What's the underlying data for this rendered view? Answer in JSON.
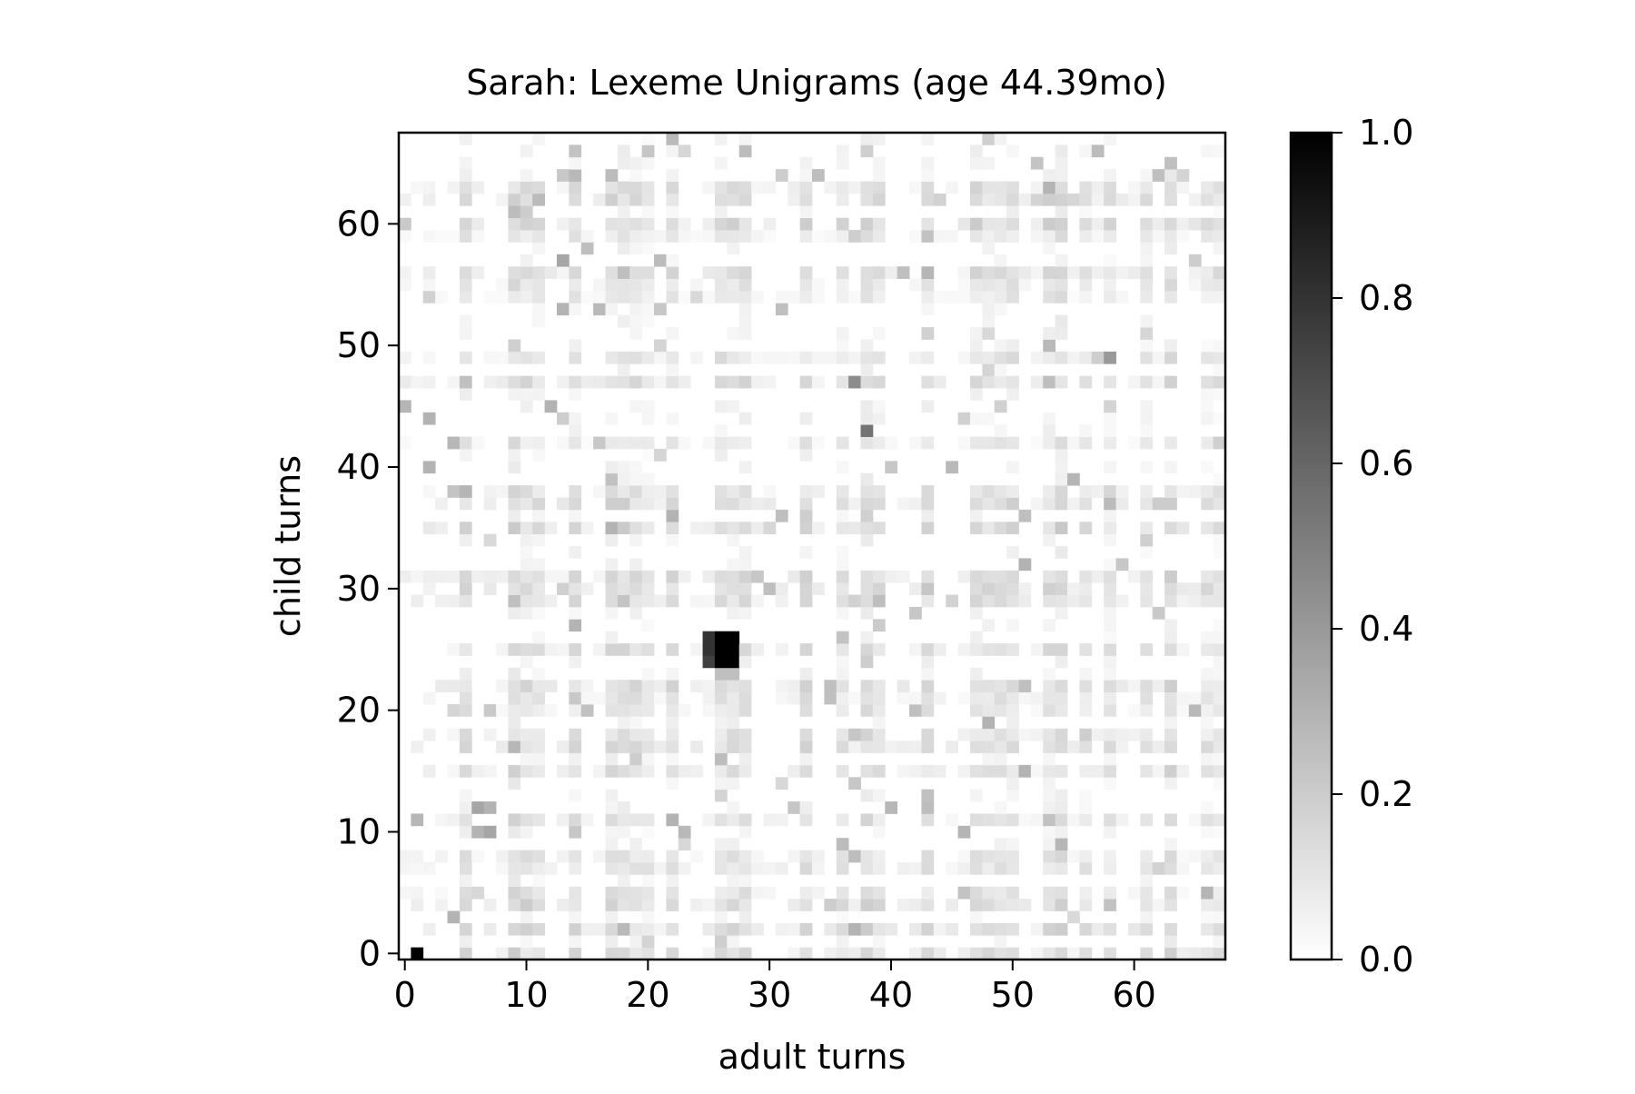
{
  "chart_data": {
    "type": "heatmap",
    "title": "Sarah: Lexeme Unigrams (age 44.39mo)",
    "xlabel": "adult turns",
    "ylabel": "child turns",
    "x_ticks": [
      0,
      10,
      20,
      30,
      40,
      50,
      60
    ],
    "y_ticks": [
      0,
      10,
      20,
      30,
      40,
      50,
      60
    ],
    "xlim": [
      -0.5,
      67.5
    ],
    "ylim": [
      -0.5,
      67.5
    ],
    "colormap": "Greys",
    "colorbar": {
      "min": 0.0,
      "max": 1.0,
      "ticks": [
        "0.0",
        "0.2",
        "0.4",
        "0.6",
        "0.8",
        "1.0"
      ]
    },
    "grid": false,
    "strong_cells": [
      {
        "x": 1,
        "y": 0,
        "value": 1.0
      },
      {
        "x": 25,
        "y": 24,
        "value": 0.75
      },
      {
        "x": 25,
        "y": 25,
        "value": 0.8
      },
      {
        "x": 25,
        "y": 26,
        "value": 0.8
      },
      {
        "x": 26,
        "y": 24,
        "value": 1.0
      },
      {
        "x": 26,
        "y": 25,
        "value": 1.0
      },
      {
        "x": 26,
        "y": 26,
        "value": 1.0
      },
      {
        "x": 27,
        "y": 24,
        "value": 1.0
      },
      {
        "x": 27,
        "y": 25,
        "value": 1.0
      },
      {
        "x": 27,
        "y": 26,
        "value": 1.0
      },
      {
        "x": 26,
        "y": 23,
        "value": 0.25
      },
      {
        "x": 27,
        "y": 23,
        "value": 0.25
      },
      {
        "x": 6,
        "y": 12,
        "value": 0.35
      },
      {
        "x": 7,
        "y": 12,
        "value": 0.3
      },
      {
        "x": 6,
        "y": 10,
        "value": 0.3
      },
      {
        "x": 7,
        "y": 10,
        "value": 0.35
      },
      {
        "x": 13,
        "y": 57,
        "value": 0.35
      },
      {
        "x": 13,
        "y": 53,
        "value": 0.3
      },
      {
        "x": 37,
        "y": 47,
        "value": 0.45
      },
      {
        "x": 38,
        "y": 43,
        "value": 0.55
      },
      {
        "x": 58,
        "y": 49,
        "value": 0.4
      },
      {
        "x": 51,
        "y": 36,
        "value": 0.25
      },
      {
        "x": 51,
        "y": 32,
        "value": 0.3
      },
      {
        "x": 51,
        "y": 15,
        "value": 0.3
      },
      {
        "x": 48,
        "y": 19,
        "value": 0.3
      },
      {
        "x": 37,
        "y": 2,
        "value": 0.3
      },
      {
        "x": 4,
        "y": 3,
        "value": 0.3
      },
      {
        "x": 12,
        "y": 45,
        "value": 0.3
      },
      {
        "x": 2,
        "y": 40,
        "value": 0.3
      },
      {
        "x": 2,
        "y": 44,
        "value": 0.3
      },
      {
        "x": 22,
        "y": 11,
        "value": 0.3
      },
      {
        "x": 22,
        "y": 36,
        "value": 0.3
      },
      {
        "x": 31,
        "y": 36,
        "value": 0.25
      },
      {
        "x": 35,
        "y": 22,
        "value": 0.25
      },
      {
        "x": 51,
        "y": 22,
        "value": 0.25
      },
      {
        "x": 42,
        "y": 20,
        "value": 0.25
      },
      {
        "x": 62,
        "y": 64,
        "value": 0.25
      },
      {
        "x": 31,
        "y": 53,
        "value": 0.25
      },
      {
        "x": 41,
        "y": 56,
        "value": 0.25
      },
      {
        "x": 18,
        "y": 56,
        "value": 0.25
      }
    ],
    "background": "Most cells hold faint values between 0.0 and about 0.15"
  }
}
